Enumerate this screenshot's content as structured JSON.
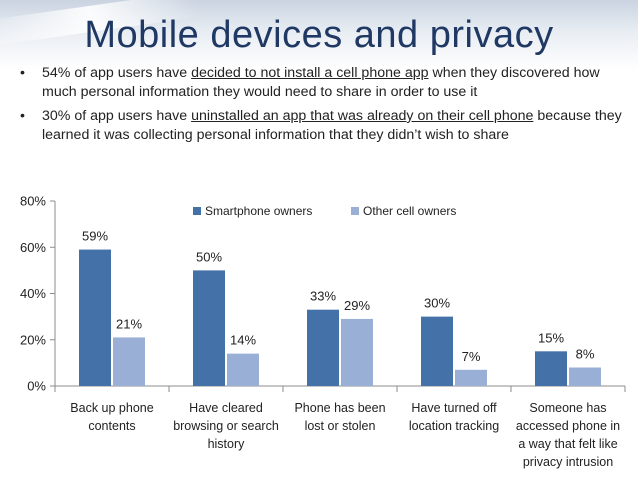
{
  "slide": {
    "title": "Mobile devices and privacy",
    "bullets": [
      {
        "pre": "54% of app users have ",
        "underlined": "decided to not install a cell phone app",
        "post": " when they discovered how much personal information they would need to share in order to use it"
      },
      {
        "pre": "30% of app users have ",
        "underlined": "uninstalled an app that was already on their cell phone",
        "post": " because they learned it was collecting personal information that they didn’t wish to share"
      }
    ],
    "bullet_symbol": "•"
  },
  "colors": {
    "title": "#1f3864",
    "smartphone": "#4472a8",
    "other": "#9aafd6"
  },
  "chart_data": {
    "type": "bar",
    "categories": [
      [
        "Back up phone",
        "contents"
      ],
      [
        "Have cleared",
        "browsing or search",
        "history"
      ],
      [
        "Phone has been",
        "lost or stolen"
      ],
      [
        "Have turned off",
        "location tracking"
      ],
      [
        "Someone has",
        "accessed phone in",
        "a way that felt like",
        "privacy intrusion"
      ]
    ],
    "series": [
      {
        "name": "Smartphone owners",
        "values": [
          59,
          50,
          33,
          30,
          15
        ],
        "labels": [
          "59%",
          "50%",
          "33%",
          "30%",
          "15%"
        ]
      },
      {
        "name": "Other cell owners",
        "values": [
          21,
          14,
          29,
          7,
          8
        ],
        "labels": [
          "21%",
          "14%",
          "29%",
          "7%",
          "8%"
        ]
      }
    ],
    "yticks": [
      "0%",
      "20%",
      "40%",
      "60%",
      "80%"
    ],
    "ylim": [
      0,
      80
    ],
    "legend": "top-center",
    "grid": false
  }
}
